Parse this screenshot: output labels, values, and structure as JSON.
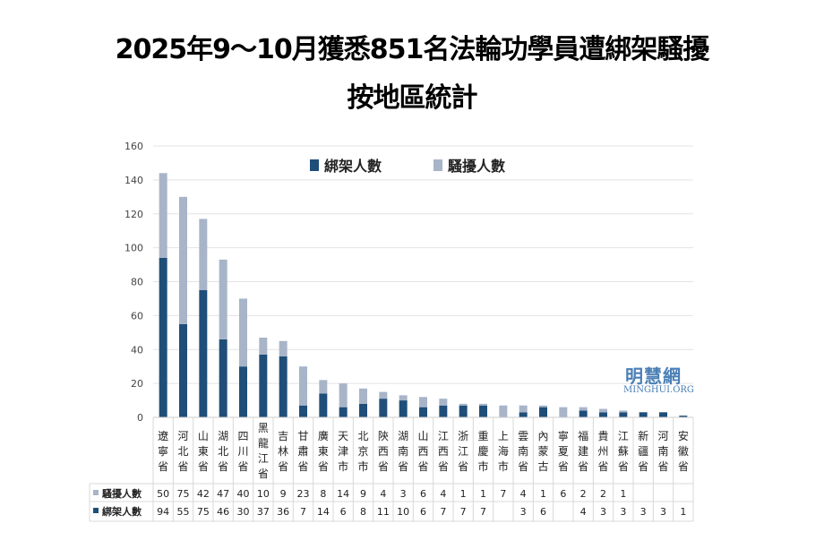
{
  "chart_data": {
    "type": "bar",
    "stacked": true,
    "title": "2025年9～10月獲悉851名法輪功學員遭綁架騷擾",
    "subtitle": "按地區統計",
    "ylim": [
      0,
      160
    ],
    "yticks": [
      0,
      20,
      40,
      60,
      80,
      100,
      120,
      140,
      160
    ],
    "grid": true,
    "legend_position": "top",
    "categories": [
      "遼寧省",
      "河北省",
      "山東省",
      "湖北省",
      "四川省",
      "黑龍江省",
      "吉林省",
      "甘肅省",
      "廣東省",
      "天津市",
      "北京市",
      "陝西省",
      "湖南省",
      "山西省",
      "江西省",
      "浙江省",
      "重慶市",
      "上海市",
      "雲南省",
      "內蒙古",
      "寧夏省",
      "福建省",
      "貴州省",
      "江蘇省",
      "新疆省",
      "河南省",
      "安徽省"
    ],
    "series": [
      {
        "name": "綁架人數",
        "color": "#1f4e79",
        "values": [
          94,
          55,
          75,
          46,
          30,
          37,
          36,
          7,
          14,
          6,
          8,
          11,
          10,
          6,
          7,
          7,
          7,
          null,
          3,
          6,
          null,
          4,
          3,
          3,
          3,
          3,
          1
        ]
      },
      {
        "name": "騷擾人數",
        "color": "#a8b4c8",
        "values": [
          50,
          75,
          42,
          47,
          40,
          10,
          9,
          23,
          8,
          14,
          9,
          4,
          3,
          6,
          4,
          1,
          1,
          7,
          4,
          1,
          6,
          2,
          2,
          1,
          null,
          null,
          null
        ]
      }
    ],
    "data_table_rows": [
      "騷擾人數",
      "綁架人數"
    ]
  },
  "watermark": {
    "name": "明慧網",
    "url": "MINGHUI.ORG"
  }
}
